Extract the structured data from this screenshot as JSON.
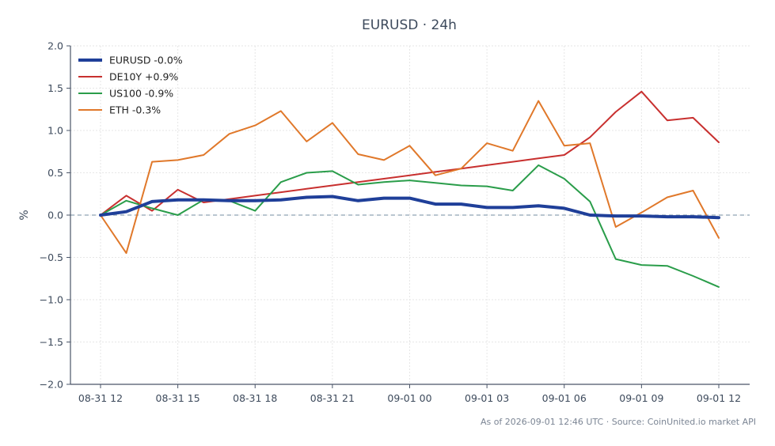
{
  "chart_data": {
    "type": "line",
    "title": "EURUSD · 24h",
    "xlabel": "",
    "ylabel": "%",
    "ylim": [
      -2.0,
      2.0
    ],
    "yticks": [
      -2.0,
      -1.5,
      -1.0,
      -0.5,
      0.0,
      0.5,
      1.0,
      1.5,
      2.0
    ],
    "ytick_labels": [
      "−2.0",
      "−1.5",
      "−1.0",
      "−0.5",
      "0.0",
      "0.5",
      "1.0",
      "1.5",
      "2.0"
    ],
    "x": [
      "2026-08-31 12:00",
      "2026-08-31 13:00",
      "2026-08-31 14:00",
      "2026-08-31 15:00",
      "2026-08-31 16:00",
      "2026-08-31 17:00",
      "2026-08-31 18:00",
      "2026-08-31 19:00",
      "2026-08-31 20:00",
      "2026-08-31 21:00",
      "2026-08-31 22:00",
      "2026-08-31 23:00",
      "2026-09-01 00:00",
      "2026-09-01 01:00",
      "2026-09-01 02:00",
      "2026-09-01 03:00",
      "2026-09-01 04:00",
      "2026-09-01 05:00",
      "2026-09-01 06:00",
      "2026-09-01 07:00",
      "2026-09-01 08:00",
      "2026-09-01 09:00",
      "2026-09-01 10:00",
      "2026-09-01 11:00",
      "2026-09-01 12:00"
    ],
    "xticks": [
      "2026-08-31 12:00",
      "2026-08-31 15:00",
      "2026-08-31 18:00",
      "2026-08-31 21:00",
      "2026-09-01 00:00",
      "2026-09-01 03:00",
      "2026-09-01 06:00",
      "2026-09-01 09:00",
      "2026-09-01 12:00"
    ],
    "xtick_labels": [
      "08-31 12",
      "08-31 15",
      "08-31 18",
      "08-31 21",
      "09-01 00",
      "09-01 03",
      "09-01 06",
      "09-01 09",
      "09-01 12"
    ],
    "reference_line": 0.0,
    "grid": true,
    "legend": "top-left",
    "series": [
      {
        "name": "EURUSD -0.0%",
        "color": "#1f3f99",
        "width": 4,
        "values": [
          0.0,
          0.04,
          0.16,
          0.18,
          0.18,
          0.17,
          0.17,
          0.18,
          0.21,
          0.22,
          0.17,
          0.2,
          0.2,
          0.13,
          0.13,
          0.09,
          0.09,
          0.11,
          0.08,
          0.0,
          -0.01,
          -0.01,
          -0.02,
          -0.02,
          -0.03
        ]
      },
      {
        "name": "DE10Y +0.9%",
        "color": "#c8302f",
        "width": 2,
        "values": [
          0.0,
          0.23,
          0.05,
          0.3,
          0.15,
          0.19,
          0.23,
          0.27,
          0.31,
          0.35,
          0.39,
          0.43,
          0.47,
          0.51,
          0.55,
          0.59,
          0.63,
          0.67,
          0.71,
          0.92,
          1.22,
          1.46,
          1.12,
          1.15,
          0.86
        ]
      },
      {
        "name": "US100 -0.9%",
        "color": "#2a9d4a",
        "width": 2,
        "values": [
          0.0,
          0.17,
          0.08,
          0.0,
          0.18,
          0.17,
          0.05,
          0.39,
          0.5,
          0.52,
          0.36,
          0.39,
          0.41,
          0.38,
          0.35,
          0.34,
          0.29,
          0.59,
          0.43,
          0.16,
          -0.52,
          -0.59,
          -0.6,
          -0.72,
          -0.85
        ]
      },
      {
        "name": "ETH -0.3%",
        "color": "#e0782a",
        "width": 2,
        "values": [
          0.0,
          -0.45,
          0.63,
          0.65,
          0.71,
          0.96,
          1.06,
          1.23,
          0.87,
          1.09,
          0.72,
          0.65,
          0.82,
          0.47,
          0.55,
          0.85,
          0.76,
          1.35,
          0.82,
          0.85,
          -0.14,
          0.03,
          0.21,
          0.29,
          -0.27
        ]
      }
    ]
  },
  "footer": "As of 2026-09-01 12:46 UTC · Source: CoinUnited.io market API"
}
